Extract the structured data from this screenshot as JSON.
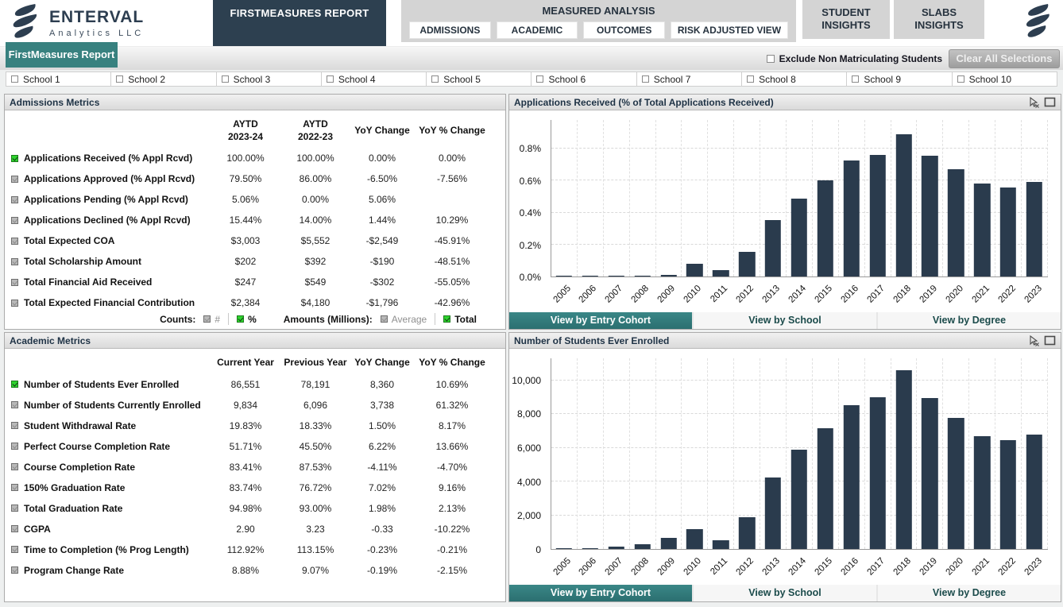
{
  "brand": {
    "name": "ENTERVAL",
    "subtitle": "Analytics LLC"
  },
  "header": {
    "main_tab": "FIRSTMEASURES REPORT",
    "measured_analysis": {
      "label": "MEASURED ANALYSIS",
      "subtabs": [
        "ADMISSIONS",
        "ACADEMIC",
        "OUTCOMES",
        "RISK ADJUSTED VIEW"
      ]
    },
    "student_insights": "STUDENT\nINSIGHTS",
    "slabs_insights": "SLABS\nINSIGHTS"
  },
  "toolbar": {
    "report_button": "FirstMeasures Report",
    "exclude_label": "Exclude Non Matriculating Students",
    "clear_button": "Clear All Selections"
  },
  "school_filters": [
    "School 1",
    "School 2",
    "School 3",
    "School 4",
    "School 5",
    "School 6",
    "School 7",
    "School 8",
    "School 9",
    "School 10"
  ],
  "admissions": {
    "title": "Admissions Metrics",
    "columns": [
      "AYTD\n2023-24",
      "AYTD\n2022-23",
      "YoY Change",
      "YoY % Change"
    ],
    "rows": [
      {
        "label": "Applications Received (% Appl Rcvd)",
        "selected": true,
        "values": [
          "100.00%",
          "100.00%",
          "0.00%",
          "0.00%"
        ]
      },
      {
        "label": "Applications Approved (% Appl Rcvd)",
        "selected": false,
        "values": [
          "79.50%",
          "86.00%",
          "-6.50%",
          "-7.56%"
        ]
      },
      {
        "label": "Applications Pending (% Appl Rcvd)",
        "selected": false,
        "values": [
          "5.06%",
          "0.00%",
          "5.06%",
          ""
        ]
      },
      {
        "label": "Applications Declined (% Appl Rcvd)",
        "selected": false,
        "values": [
          "15.44%",
          "14.00%",
          "1.44%",
          "10.29%"
        ]
      },
      {
        "label": "Total Expected COA",
        "selected": false,
        "values": [
          "$3,003",
          "$5,552",
          "-$2,549",
          "-45.91%"
        ]
      },
      {
        "label": "Total Scholarship Amount",
        "selected": false,
        "values": [
          "$202",
          "$392",
          "-$190",
          "-48.51%"
        ]
      },
      {
        "label": "Total Financial Aid Received",
        "selected": false,
        "values": [
          "$247",
          "$549",
          "-$302",
          "-55.05%"
        ]
      },
      {
        "label": "Total Expected Financial Contribution",
        "selected": false,
        "values": [
          "$2,384",
          "$4,180",
          "-$1,796",
          "-42.96%"
        ]
      }
    ],
    "footer": {
      "counts_label": "Counts:",
      "counts_options": [
        {
          "label": "#",
          "selected": false
        },
        {
          "label": "%",
          "selected": true
        }
      ],
      "amounts_label": "Amounts (Millions):",
      "amounts_options": [
        {
          "label": "Average",
          "selected": false
        },
        {
          "label": "Total",
          "selected": true
        }
      ]
    }
  },
  "academic": {
    "title": "Academic Metrics",
    "columns": [
      "Current Year",
      "Previous Year",
      "YoY Change",
      "YoY % Change"
    ],
    "rows": [
      {
        "label": "Number of Students Ever Enrolled",
        "selected": true,
        "values": [
          "86,551",
          "78,191",
          "8,360",
          "10.69%"
        ]
      },
      {
        "label": "Number of Students Currently Enrolled",
        "selected": false,
        "values": [
          "9,834",
          "6,096",
          "3,738",
          "61.32%"
        ]
      },
      {
        "label": "Student Withdrawal Rate",
        "selected": false,
        "values": [
          "19.83%",
          "18.33%",
          "1.50%",
          "8.17%"
        ]
      },
      {
        "label": "Perfect Course Completion Rate",
        "selected": false,
        "values": [
          "51.71%",
          "45.50%",
          "6.22%",
          "13.66%"
        ]
      },
      {
        "label": "Course Completion Rate",
        "selected": false,
        "values": [
          "83.41%",
          "87.53%",
          "-4.11%",
          "-4.70%"
        ]
      },
      {
        "label": "150% Graduation Rate",
        "selected": false,
        "values": [
          "83.74%",
          "76.72%",
          "7.02%",
          "9.16%"
        ]
      },
      {
        "label": "Total Graduation Rate",
        "selected": false,
        "values": [
          "94.98%",
          "93.00%",
          "1.98%",
          "2.13%"
        ]
      },
      {
        "label": "CGPA",
        "selected": false,
        "values": [
          "2.90",
          "3.23",
          "-0.33",
          "-10.22%"
        ]
      },
      {
        "label": "Time to Completion (% Prog Length)",
        "selected": false,
        "values": [
          "112.92%",
          "113.15%",
          "-0.23%",
          "-0.21%"
        ]
      },
      {
        "label": "Program Change Rate",
        "selected": false,
        "values": [
          "8.88%",
          "9.07%",
          "-0.19%",
          "-2.15%"
        ]
      }
    ]
  },
  "view_buttons": {
    "labels": [
      "View by Entry Cohort",
      "View by School",
      "View by Degree"
    ],
    "active_index": 0
  },
  "bar_color": "#2a3b4d",
  "accent_teal": "#38817f",
  "chart_data": [
    {
      "type": "bar",
      "title": "Applications Received (% of Total Applications Received)",
      "categories": [
        "2005",
        "2006",
        "2007",
        "2008",
        "2009",
        "2010",
        "2011",
        "2012",
        "2013",
        "2014",
        "2015",
        "2016",
        "2017",
        "2018",
        "2019",
        "2020",
        "2021",
        "2022",
        "2023"
      ],
      "values": [
        0.005,
        0.005,
        0.005,
        0.005,
        0.01,
        0.08,
        0.04,
        0.155,
        0.355,
        0.49,
        0.6,
        0.725,
        0.76,
        0.89,
        0.755,
        0.67,
        0.58,
        0.555,
        0.59
      ],
      "xlabel": "",
      "ylabel": "",
      "ylim": [
        0,
        0.98
      ],
      "yticks": [
        {
          "v": 0,
          "label": "0.0%"
        },
        {
          "v": 0.2,
          "label": "0.2%"
        },
        {
          "v": 0.4,
          "label": "0.4%"
        },
        {
          "v": 0.6,
          "label": "0.6%"
        },
        {
          "v": 0.8,
          "label": "0.8%"
        }
      ],
      "grid": true,
      "legend": "none"
    },
    {
      "type": "bar",
      "title": "Number of Students Ever Enrolled",
      "categories": [
        "2005",
        "2006",
        "2007",
        "2008",
        "2009",
        "2010",
        "2011",
        "2012",
        "2013",
        "2014",
        "2015",
        "2016",
        "2017",
        "2018",
        "2019",
        "2020",
        "2021",
        "2022",
        "2023"
      ],
      "values": [
        60,
        70,
        120,
        300,
        650,
        1200,
        500,
        1900,
        4250,
        5900,
        7150,
        8500,
        9000,
        10600,
        8950,
        7750,
        6700,
        6450,
        6800
      ],
      "xlabel": "",
      "ylabel": "",
      "ylim": [
        0,
        11300
      ],
      "yticks": [
        {
          "v": 0,
          "label": "0"
        },
        {
          "v": 2000,
          "label": "2,000"
        },
        {
          "v": 4000,
          "label": "4,000"
        },
        {
          "v": 6000,
          "label": "6,000"
        },
        {
          "v": 8000,
          "label": "8,000"
        },
        {
          "v": 10000,
          "label": "10,000"
        }
      ],
      "grid": true,
      "legend": "none"
    }
  ]
}
